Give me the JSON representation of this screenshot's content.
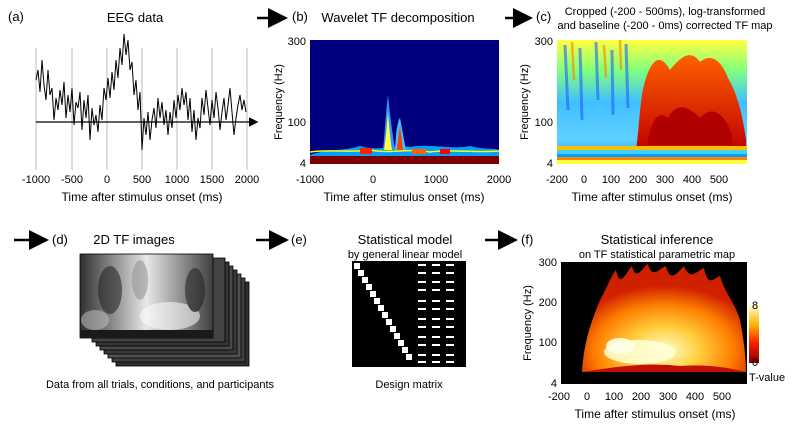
{
  "panel_a": {
    "label": "(a)",
    "title": "EEG data",
    "xlabel": "Time after stimulus onset (ms)",
    "xticks": [
      "-1000",
      "-500",
      "0",
      "500",
      "1000",
      "1500",
      "2000"
    ]
  },
  "panel_b": {
    "label": "(b)",
    "title": "Wavelet TF decomposition",
    "ylabel": "Frequency (Hz)",
    "yticks": [
      "300",
      "100",
      "4"
    ],
    "xlabel": "Time after stimulus onset (ms)",
    "xticks": [
      "-1000",
      "0",
      "1000",
      "2000"
    ]
  },
  "panel_c": {
    "label": "(c)",
    "title_line1": "Cropped (-200 - 500ms), log-transformed",
    "title_line2": "and baseline (-200 - 0ms) corrected TF map",
    "ylabel": "Frequency (Hz)",
    "yticks": [
      "300",
      "100",
      "4"
    ],
    "xlabel": "Time after stimulus onset (ms)",
    "xticks": [
      "-200",
      "0",
      "100",
      "200",
      "300",
      "400",
      "500"
    ]
  },
  "panel_d": {
    "label": "(d)",
    "title": "2D TF images",
    "caption": "Data from all trials, conditions, and participants"
  },
  "panel_e": {
    "label": "(e)",
    "title": "Statistical model",
    "subtitle": "by general linear model",
    "caption": "Design matrix"
  },
  "panel_f": {
    "label": "(f)",
    "title": "Statistical inference",
    "subtitle": "on TF statistical parametric map",
    "ylabel": "Frequency (Hz)",
    "yticks": [
      "300",
      "200",
      "100",
      "4"
    ],
    "xlabel": "Time after stimulus onset (ms)",
    "xticks": [
      "-200",
      "0",
      "100",
      "200",
      "300",
      "400",
      "500"
    ],
    "colorbar_max": "8",
    "colorbar_min": "0",
    "colorbar_label": "T-value"
  },
  "colors": {
    "jet_background": "#00007f",
    "heat_low": "#7f0000",
    "heat_high": "#ffffcc"
  }
}
